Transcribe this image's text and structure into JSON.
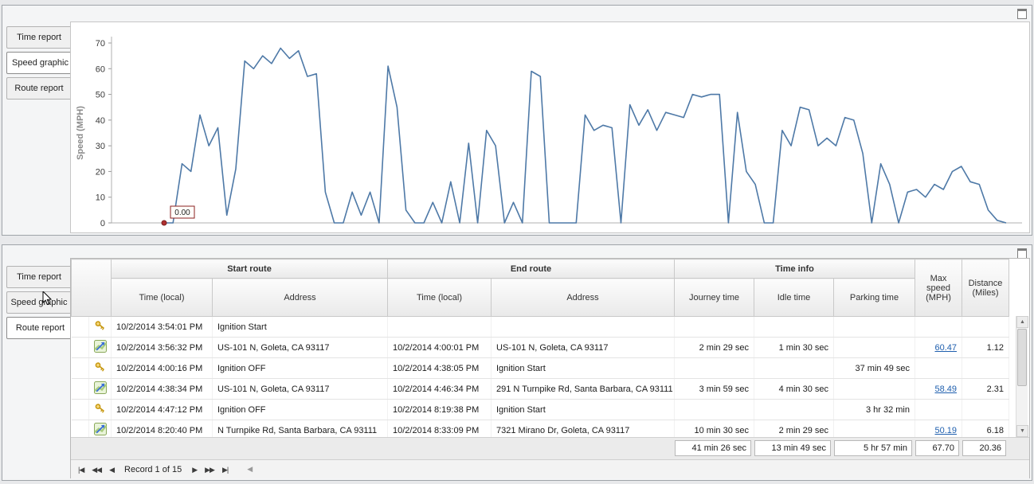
{
  "colors": {
    "chart_line": "#4e79a7",
    "chart_marker": "#b03030",
    "link": "#1f5fae"
  },
  "panels": {
    "top": {
      "tabs": [
        {
          "label": "Time report",
          "active": false
        },
        {
          "label": "Speed graphic",
          "active": true
        },
        {
          "label": "Route report",
          "active": false
        }
      ]
    },
    "bottom": {
      "tabs": [
        {
          "label": "Time report",
          "active": false
        },
        {
          "label": "Speed graphic",
          "active": false
        },
        {
          "label": "Route report",
          "active": true
        }
      ]
    }
  },
  "chart_data": {
    "type": "line",
    "title": "",
    "xlabel": "",
    "ylabel": "Speed (MPH)",
    "ylim": [
      0,
      70
    ],
    "yticks": [
      0,
      10,
      20,
      30,
      40,
      50,
      60,
      70
    ],
    "grid": false,
    "legend": false,
    "annotation": {
      "label": "0.00",
      "at_first_point": true
    },
    "values": [
      0,
      0,
      23,
      20,
      42,
      30,
      37,
      3,
      21,
      63,
      60,
      65,
      62,
      68,
      64,
      67,
      57,
      58,
      12,
      0,
      0,
      12,
      3,
      12,
      0,
      61,
      45,
      5,
      0,
      0,
      8,
      0,
      16,
      0,
      31,
      0,
      36,
      30,
      0,
      8,
      0,
      59,
      57,
      0,
      0,
      0,
      0,
      42,
      36,
      38,
      37,
      0,
      46,
      38,
      44,
      36,
      43,
      42,
      41,
      50,
      49,
      50,
      50,
      0,
      43,
      20,
      15,
      0,
      0,
      36,
      30,
      45,
      44,
      30,
      33,
      30,
      41,
      40,
      27,
      0,
      23,
      15,
      0,
      12,
      13,
      10,
      15,
      13,
      20,
      22,
      16,
      15,
      5,
      1,
      0
    ]
  },
  "table": {
    "groups": [
      "Start route",
      "End route",
      "Time info"
    ],
    "columns": [
      "Time (local)",
      "Address",
      "Time (local)",
      "Address",
      "Journey time",
      "Idle time",
      "Parking time",
      "Max speed (MPH)",
      "Distance (Miles)"
    ],
    "rows": [
      {
        "icon": "key",
        "start_time": "10/2/2014 3:54:01 PM",
        "start_address": "Ignition Start",
        "end_time": "",
        "end_address": "",
        "journey": "",
        "idle": "",
        "parking": "",
        "max_speed": "",
        "max_link": false,
        "distance": ""
      },
      {
        "icon": "route",
        "start_time": "10/2/2014 3:56:32 PM",
        "start_address": "US-101 N, Goleta, CA 93117",
        "end_time": "10/2/2014 4:00:01 PM",
        "end_address": "US-101 N, Goleta, CA 93117",
        "journey": "2 min 29 sec",
        "idle": "1 min 30 sec",
        "parking": "",
        "max_speed": "60.47",
        "max_link": true,
        "distance": "1.12"
      },
      {
        "icon": "key",
        "start_time": "10/2/2014 4:00:16 PM",
        "start_address": "Ignition OFF",
        "end_time": "10/2/2014 4:38:05 PM",
        "end_address": "Ignition Start",
        "journey": "",
        "idle": "",
        "parking": "37 min 49 sec",
        "max_speed": "",
        "max_link": false,
        "distance": ""
      },
      {
        "icon": "route",
        "start_time": "10/2/2014 4:38:34 PM",
        "start_address": "US-101 N, Goleta, CA 93117",
        "end_time": "10/2/2014 4:46:34 PM",
        "end_address": "291 N Turnpike Rd, Santa Barbara, CA 93111",
        "journey": "3 min 59 sec",
        "idle": "4 min 30 sec",
        "parking": "",
        "max_speed": "58.49",
        "max_link": true,
        "distance": "2.31"
      },
      {
        "icon": "key",
        "start_time": "10/2/2014 4:47:12 PM",
        "start_address": "Ignition OFF",
        "end_time": "10/2/2014 8:19:38 PM",
        "end_address": "Ignition Start",
        "journey": "",
        "idle": "",
        "parking": "3 hr 32 min",
        "max_speed": "",
        "max_link": false,
        "distance": ""
      },
      {
        "icon": "route",
        "start_time": "10/2/2014 8:20:40 PM",
        "start_address": "N Turnpike Rd, Santa Barbara, CA 93111",
        "end_time": "10/2/2014 8:33:09 PM",
        "end_address": "7321 Mirano Dr, Goleta, CA 93117",
        "journey": "10 min 30 sec",
        "idle": "2 min 29 sec",
        "parking": "",
        "max_speed": "50.19",
        "max_link": true,
        "distance": "6.18"
      }
    ],
    "summary": {
      "journey": "41 min 26 sec",
      "idle": "13 min 49 sec",
      "parking": "5 hr 57 min",
      "max_speed": "67.70",
      "distance": "20.36"
    }
  },
  "scrollbar": {
    "up": "▲",
    "down": "▼"
  },
  "footer": {
    "record_label": "Record 1 of 15",
    "buttons_left": [
      {
        "glyph": "|◀",
        "name": "first"
      },
      {
        "glyph": "◀◀",
        "name": "prev-page"
      },
      {
        "glyph": "◀",
        "name": "prev"
      }
    ],
    "buttons_right": [
      {
        "glyph": "▶",
        "name": "next"
      },
      {
        "glyph": "▶▶",
        "name": "next-page"
      },
      {
        "glyph": "▶|",
        "name": "last"
      }
    ],
    "scroll_left_glyph": "◀"
  }
}
